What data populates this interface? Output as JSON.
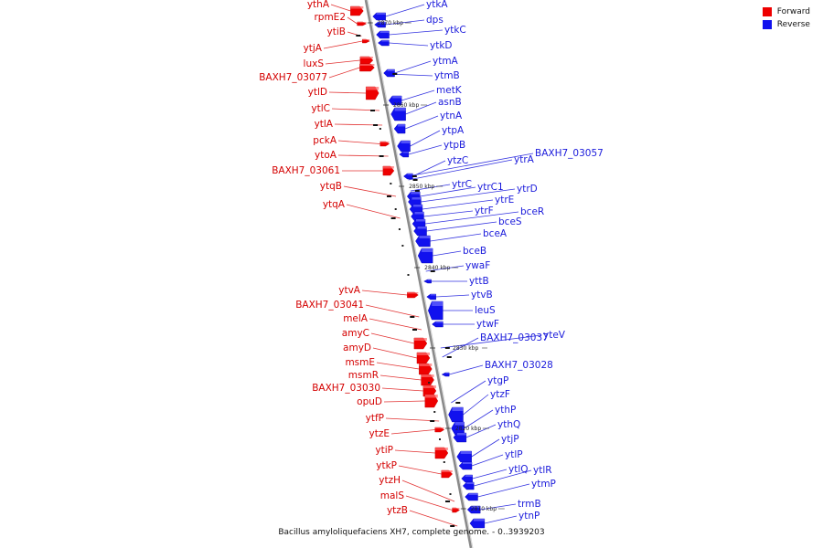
{
  "title": "Bacillus amyloliquefaciens XH7, complete genome. - 0..3939203",
  "legend": [
    {
      "label": "Forward",
      "color": "#ee0000"
    },
    {
      "label": "Reverse",
      "color": "#1111ee"
    }
  ],
  "ticks": [
    "2870 kbp",
    "2860 kbp",
    "2850 kbp",
    "2840 kbp",
    "2830 kbp",
    "2820 kbp",
    "2810 kbp"
  ],
  "forward_genes": [
    "ythA",
    "rpmE2",
    "ytiB",
    "ytjA",
    "luxS",
    "BAXH7_03077",
    "ytlD",
    "ytlC",
    "ytlA",
    "pckA",
    "ytoA",
    "BAXH7_03061",
    "ytqB",
    "ytqA",
    "ytvA",
    "BAXH7_03041",
    "melA",
    "amyC",
    "amyD",
    "msmE",
    "msmR",
    "BAXH7_03030",
    "opuD",
    "ytfP",
    "ytzE",
    "ytiP",
    "ytkP",
    "ytzH",
    "malS",
    "ytzB"
  ],
  "reverse_genes": [
    "ytkA",
    "dps",
    "ytkC",
    "ytkD",
    "ytmA",
    "ytmB",
    "metK",
    "asnB",
    "ytnA",
    "ytpA",
    "ytpB",
    "ytzC",
    "ytrA",
    "BAXH7_03057",
    "ytrC",
    "ytrC1",
    "ytrD",
    "ytrE",
    "ytrF",
    "bceR",
    "bceS",
    "bceA",
    "bceB",
    "ywaF",
    "yttB",
    "ytvB",
    "leuS",
    "ytwF",
    "BAXH7_03037",
    "yteV",
    "BAXH7_03028",
    "ytgP",
    "ytzF",
    "ythP",
    "ythQ",
    "ytjP",
    "ytlP",
    "ytlQ",
    "ytlR",
    "ytmP",
    "trmB",
    "ytnP"
  ]
}
